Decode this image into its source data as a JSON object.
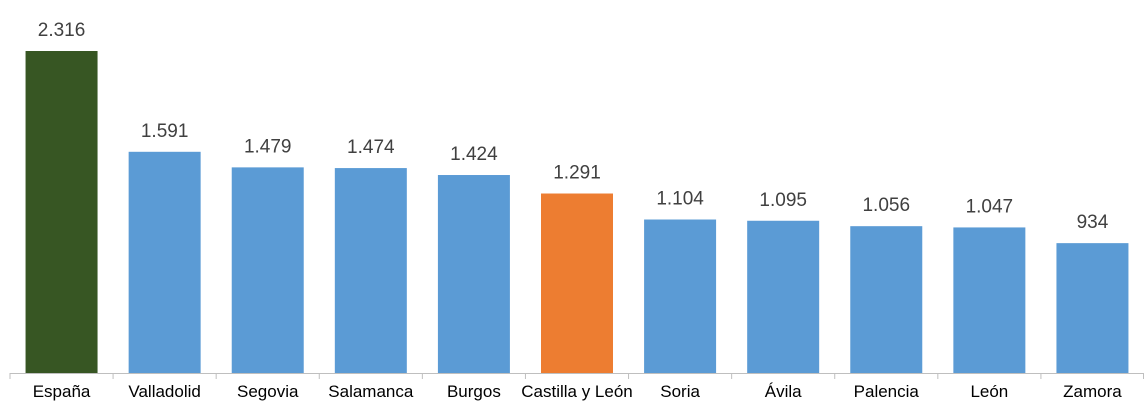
{
  "chart_data": {
    "type": "bar",
    "title": "",
    "xlabel": "",
    "ylabel": "",
    "categories": [
      "España",
      "Valladolid",
      "Segovia",
      "Salamanca",
      "Burgos",
      "Castilla y León",
      "Soria",
      "Ávila",
      "Palencia",
      "León",
      "Zamora"
    ],
    "values": [
      2316,
      1591,
      1479,
      1474,
      1424,
      1291,
      1104,
      1095,
      1056,
      1047,
      934
    ],
    "value_labels": [
      "2.316",
      "1.591",
      "1.479",
      "1.474",
      "1.424",
      "1.291",
      "1.104",
      "1.095",
      "1.056",
      "1.047",
      "934"
    ],
    "bar_colors": [
      "#375623",
      "#5B9BD5",
      "#5B9BD5",
      "#5B9BD5",
      "#5B9BD5",
      "#ED7D31",
      "#5B9BD5",
      "#5B9BD5",
      "#5B9BD5",
      "#5B9BD5",
      "#5B9BD5"
    ],
    "ylim": [
      0,
      2316
    ],
    "grid": false,
    "legend": "none"
  },
  "colors": {
    "axis": "#BFBFBF",
    "label_text": "#404040",
    "category_text": "#000000"
  }
}
